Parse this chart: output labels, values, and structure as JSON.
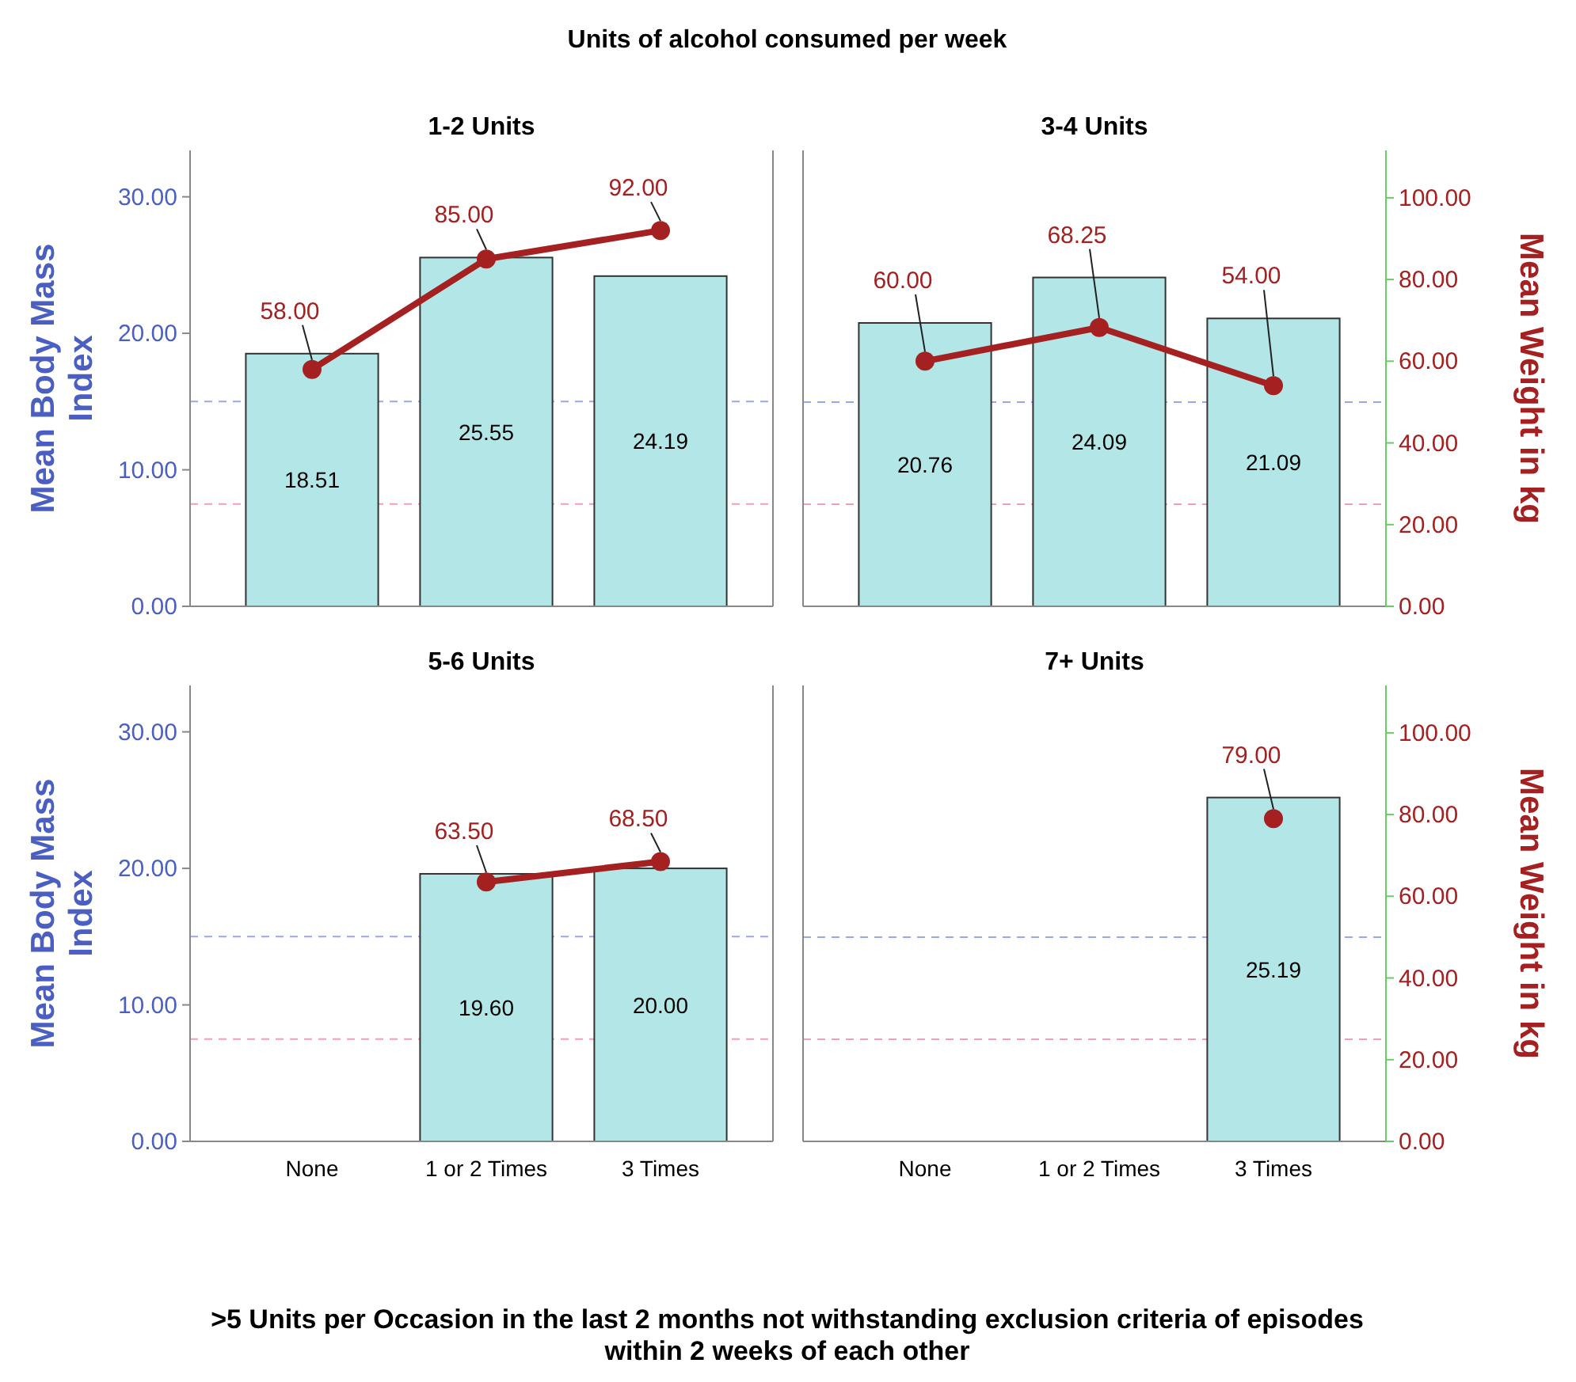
{
  "chart_data": [
    {
      "type": "bar",
      "title": "1-2 Units",
      "annotations": [
        "Units of alcohol consumed per week"
      ],
      "categories": [
        null,
        null,
        null
      ],
      "ylabel": "Mean Body Mass Index",
      "ylim": [
        0,
        33.4
      ],
      "yticks": [
        {
          "value": 0,
          "label": "0.00"
        },
        {
          "value": 10,
          "label": "10.00"
        },
        {
          "value": 20,
          "label": "20.00"
        },
        {
          "value": 30,
          "label": "30.00"
        }
      ],
      "tick_labels": "y",
      "marker": "circle",
      "ref_lines": [
        {
          "axis": "y",
          "value": 15,
          "color": "#9aa6f0",
          "line_style": "dashed"
        },
        {
          "axis": "y",
          "value": 7.5,
          "color": "#f0a0b0",
          "line_style": "dashed"
        }
      ],
      "series": [
        {
          "axis": "y",
          "color": "#b3e6e6",
          "values": [
            18.51,
            25.55,
            24.19
          ],
          "value_labels": [
            "18.51",
            "25.55",
            "24.19"
          ]
        },
        {
          "type": "line",
          "axis": "y2",
          "color": "#a52020",
          "values": [
            58,
            85,
            92
          ],
          "value_labels": [
            "58.00",
            "85.00",
            "92.00"
          ]
        }
      ]
    },
    {
      "type": "bar",
      "title": "3-4 Units",
      "categories": [
        null,
        null,
        null
      ],
      "y2label": "Mean Weight in kg",
      "y2lim": [
        0,
        111.6
      ],
      "y2ticks": [
        {
          "value": 0,
          "label": "0.00"
        },
        {
          "value": 20,
          "label": "20.00"
        },
        {
          "value": 40,
          "label": "40.00"
        },
        {
          "value": 60,
          "label": "60.00"
        },
        {
          "value": 80,
          "label": "80.00"
        },
        {
          "value": 100,
          "label": "100.00"
        }
      ],
      "tick_labels": "y2",
      "marker": "circle",
      "ref_lines": [
        {
          "axis": "y2",
          "value": 50,
          "color": "#9aa6f0",
          "line_style": "dashed"
        },
        {
          "axis": "y2",
          "value": 25,
          "color": "#f0a0b0",
          "line_style": "dashed"
        }
      ],
      "series": [
        {
          "axis": "y",
          "color": "#b3e6e6",
          "values": [
            20.76,
            24.09,
            21.09
          ],
          "value_labels": [
            "20.76",
            "24.09",
            "21.09"
          ]
        },
        {
          "type": "line",
          "axis": "y2",
          "color": "#a52020",
          "values": [
            60,
            68.25,
            54
          ],
          "value_labels": [
            "60.00",
            "68.25",
            "54.00"
          ]
        }
      ]
    },
    {
      "type": "bar",
      "title": "5-6 Units",
      "categories": [
        "None",
        "1 or 2 Times",
        "3 Times"
      ],
      "xlabel": ">5 Units per Occasion in the last 2 months not withstanding exclusion criteria of episodes within 2 weeks of each other",
      "ylabel": "Mean Body Mass Index",
      "ylim": [
        0,
        33.4
      ],
      "yticks": [
        {
          "value": 0,
          "label": "0.00"
        },
        {
          "value": 10,
          "label": "10.00"
        },
        {
          "value": 20,
          "label": "20.00"
        },
        {
          "value": 30,
          "label": "30.00"
        }
      ],
      "tick_labels": "xy",
      "marker": "circle",
      "ref_lines": [
        {
          "axis": "y",
          "value": 15,
          "color": "#9aa6f0",
          "line_style": "dashed"
        },
        {
          "axis": "y",
          "value": 7.5,
          "color": "#f0a0b0",
          "line_style": "dashed"
        }
      ],
      "series": [
        {
          "axis": "y",
          "color": "#b3e6e6",
          "values": [
            null,
            19.6,
            20.0
          ],
          "value_labels": [
            null,
            "19.60",
            "20.00"
          ]
        },
        {
          "type": "line",
          "axis": "y2",
          "color": "#a52020",
          "values": [
            null,
            63.5,
            68.5
          ],
          "value_labels": [
            null,
            "63.50",
            "68.50"
          ]
        }
      ]
    },
    {
      "type": "bar",
      "title": "7+ Units",
      "categories": [
        "None",
        "1 or 2 Times",
        "3 Times"
      ],
      "y2label": "Mean Weight in kg",
      "y2lim": [
        0,
        111.6
      ],
      "y2ticks": [
        {
          "value": 0,
          "label": "0.00"
        },
        {
          "value": 20,
          "label": "20.00"
        },
        {
          "value": 40,
          "label": "40.00"
        },
        {
          "value": 60,
          "label": "60.00"
        },
        {
          "value": 80,
          "label": "80.00"
        },
        {
          "value": 100,
          "label": "100.00"
        }
      ],
      "tick_labels": "xy2",
      "marker": "circle",
      "ref_lines": [
        {
          "axis": "y2",
          "value": 50,
          "color": "#9aa6f0",
          "line_style": "dashed"
        },
        {
          "axis": "y2",
          "value": 25,
          "color": "#f0a0b0",
          "line_style": "dashed"
        }
      ],
      "series": [
        {
          "axis": "y",
          "color": "#b3e6e6",
          "values": [
            null,
            null,
            25.19
          ],
          "value_labels": [
            null,
            null,
            "25.19"
          ]
        },
        {
          "type": "line",
          "axis": "y2",
          "color": "#a52020",
          "values": [
            null,
            null,
            79
          ],
          "value_labels": [
            null,
            null,
            "79.00"
          ]
        }
      ]
    }
  ]
}
